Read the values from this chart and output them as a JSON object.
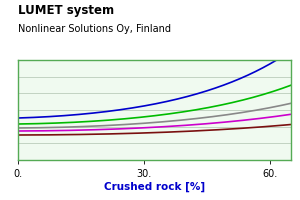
{
  "title": "LUMET system",
  "subtitle": "Nonlinear Solutions Oy, Finland",
  "xlabel": "Crushed rock [%]",
  "xlim": [
    0,
    65
  ],
  "ylim": [
    0,
    1
  ],
  "xticks": [
    0,
    30,
    60
  ],
  "xtick_labels": [
    "0.",
    "30.",
    "60."
  ],
  "background_color": "#ffffff",
  "plot_bg_color": "#f0faf0",
  "border_color": "#55aa55",
  "grid_color": "#bbccbb",
  "curves": [
    {
      "color": "#0000cc",
      "a": 0.42,
      "b": 0.003,
      "c": 0.00018
    },
    {
      "color": "#00bb00",
      "a": 0.36,
      "b": 0.0015,
      "c": 0.00015
    },
    {
      "color": "#888888",
      "a": 0.32,
      "b": 0.001,
      "c": 0.00012
    },
    {
      "color": "#cc00cc",
      "a": 0.29,
      "b": 0.0005,
      "c": 0.0001
    },
    {
      "color": "#7a1010",
      "a": 0.25,
      "b": 0.0002,
      "c": 8e-05
    }
  ],
  "title_fontsize": 8.5,
  "subtitle_fontsize": 7,
  "xlabel_fontsize": 7.5,
  "tick_fontsize": 7,
  "xlabel_color": "#0000cc",
  "n_hgrid": 6
}
